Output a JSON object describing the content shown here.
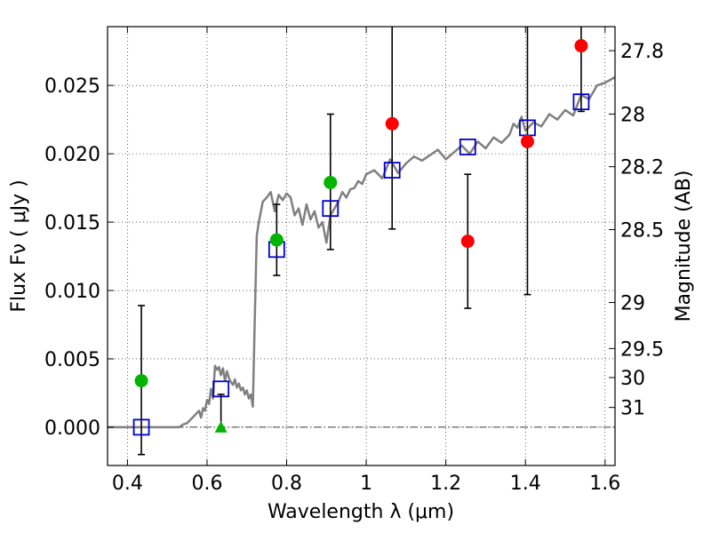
{
  "chart_data": {
    "type": "scatter",
    "title": "",
    "xlabel": "Wavelength  λ (μm)",
    "ylabel": "Flux  Fν  ( μJy )",
    "y2label": "Magnitude (AB)",
    "xlim": [
      0.35,
      1.625
    ],
    "ylim": [
      -0.0028,
      0.0293
    ],
    "grid": true,
    "x_ticks": [
      0.4,
      0.6,
      0.8,
      1.0,
      1.2,
      1.4,
      1.6
    ],
    "x_tick_labels": [
      "0.4",
      "0.6",
      "0.8",
      "1",
      "1.2",
      "1.4",
      "1.6"
    ],
    "y_ticks": [
      0.0,
      0.005,
      0.01,
      0.015,
      0.02,
      0.025
    ],
    "y_tick_labels": [
      "0.000",
      "0.005",
      "0.010",
      "0.015",
      "0.020",
      "0.025"
    ],
    "mag_ticks": [
      27.8,
      28,
      28.2,
      28.5,
      29,
      29.5,
      30,
      31
    ],
    "mag_tick_labels": [
      "27.8",
      "28",
      "28.2",
      "28.5",
      "29",
      "29.5",
      "30",
      "31"
    ],
    "colors": {
      "model": "#808080",
      "model_points": "#0000cc",
      "obs_green": "#00b400",
      "obs_red": "#ff0000",
      "errorbar": "#000000"
    },
    "model_spectrum": {
      "x": [
        0.35,
        0.5,
        0.53,
        0.54,
        0.55,
        0.56,
        0.57,
        0.58,
        0.585,
        0.59,
        0.595,
        0.6,
        0.605,
        0.61,
        0.615,
        0.62,
        0.625,
        0.63,
        0.635,
        0.64,
        0.645,
        0.65,
        0.655,
        0.66,
        0.665,
        0.67,
        0.675,
        0.68,
        0.685,
        0.69,
        0.695,
        0.7,
        0.705,
        0.71,
        0.715,
        0.72,
        0.725,
        0.73,
        0.74,
        0.75,
        0.76,
        0.77,
        0.78,
        0.79,
        0.8,
        0.81,
        0.82,
        0.83,
        0.84,
        0.85,
        0.86,
        0.87,
        0.88,
        0.89,
        0.9,
        0.91,
        0.92,
        0.93,
        0.94,
        0.95,
        0.96,
        0.97,
        0.98,
        0.99,
        1.0,
        1.02,
        1.04,
        1.06,
        1.08,
        1.1,
        1.12,
        1.14,
        1.16,
        1.18,
        1.2,
        1.22,
        1.24,
        1.26,
        1.28,
        1.3,
        1.32,
        1.34,
        1.36,
        1.37,
        1.38,
        1.39,
        1.4,
        1.42,
        1.44,
        1.46,
        1.48,
        1.5,
        1.52,
        1.54,
        1.56,
        1.58,
        1.6,
        1.625
      ],
      "y": [
        0.0,
        0.0,
        0.0,
        0.0002,
        0.0003,
        0.0006,
        0.0009,
        0.0012,
        0.0007,
        0.0014,
        0.0012,
        0.002,
        0.0017,
        0.0028,
        0.0021,
        0.0045,
        0.0042,
        0.0044,
        0.0038,
        0.0043,
        0.0034,
        0.0041,
        0.0036,
        0.0033,
        0.0031,
        0.0035,
        0.0029,
        0.0032,
        0.0027,
        0.0029,
        0.0024,
        0.0027,
        0.0021,
        0.0024,
        0.0015,
        0.008,
        0.014,
        0.015,
        0.0165,
        0.0168,
        0.0172,
        0.0158,
        0.017,
        0.0166,
        0.0171,
        0.0168,
        0.0155,
        0.016,
        0.0148,
        0.0163,
        0.0152,
        0.0158,
        0.0146,
        0.015,
        0.0135,
        0.0155,
        0.016,
        0.0165,
        0.0172,
        0.0168,
        0.0174,
        0.0175,
        0.018,
        0.0178,
        0.0185,
        0.0188,
        0.0182,
        0.0196,
        0.0186,
        0.0193,
        0.0198,
        0.0195,
        0.0199,
        0.0203,
        0.0196,
        0.0201,
        0.0206,
        0.02,
        0.0209,
        0.0204,
        0.0212,
        0.0208,
        0.0214,
        0.0222,
        0.0219,
        0.0227,
        0.0217,
        0.0223,
        0.022,
        0.0229,
        0.0225,
        0.0232,
        0.0228,
        0.0243,
        0.024,
        0.025,
        0.0252,
        0.0256
      ]
    },
    "model_points": {
      "x": [
        0.435,
        0.635,
        0.775,
        0.91,
        1.065,
        1.255,
        1.405,
        1.54
      ],
      "y": [
        0.0,
        0.0028,
        0.013,
        0.016,
        0.0188,
        0.0205,
        0.0219,
        0.0238
      ]
    },
    "observed": [
      {
        "x": 0.435,
        "y": 0.0034,
        "err_lo": 0.0054,
        "err_hi": 0.0055,
        "color": "green",
        "marker": "circle"
      },
      {
        "x": 0.635,
        "y": 0.0,
        "err_lo": 0.0,
        "err_hi": 0.0024,
        "color": "green",
        "marker": "triangle"
      },
      {
        "x": 0.775,
        "y": 0.0137,
        "err_lo": 0.0026,
        "err_hi": 0.0026,
        "color": "green",
        "marker": "circle"
      },
      {
        "x": 0.91,
        "y": 0.0179,
        "err_lo": 0.0049,
        "err_hi": 0.005,
        "color": "green",
        "marker": "circle"
      },
      {
        "x": 1.065,
        "y": 0.0222,
        "err_lo": 0.0077,
        "err_hi": 0.0078,
        "color": "red",
        "marker": "circle"
      },
      {
        "x": 1.255,
        "y": 0.0136,
        "err_lo": 0.0049,
        "err_hi": 0.0049,
        "color": "red",
        "marker": "circle"
      },
      {
        "x": 1.405,
        "y": 0.0209,
        "err_lo": 0.0112,
        "err_hi": 0.0112,
        "color": "red",
        "marker": "circle"
      },
      {
        "x": 1.54,
        "y": 0.0279,
        "err_lo": 0.0048,
        "err_hi": 0.0048,
        "color": "red",
        "marker": "circle"
      }
    ]
  }
}
